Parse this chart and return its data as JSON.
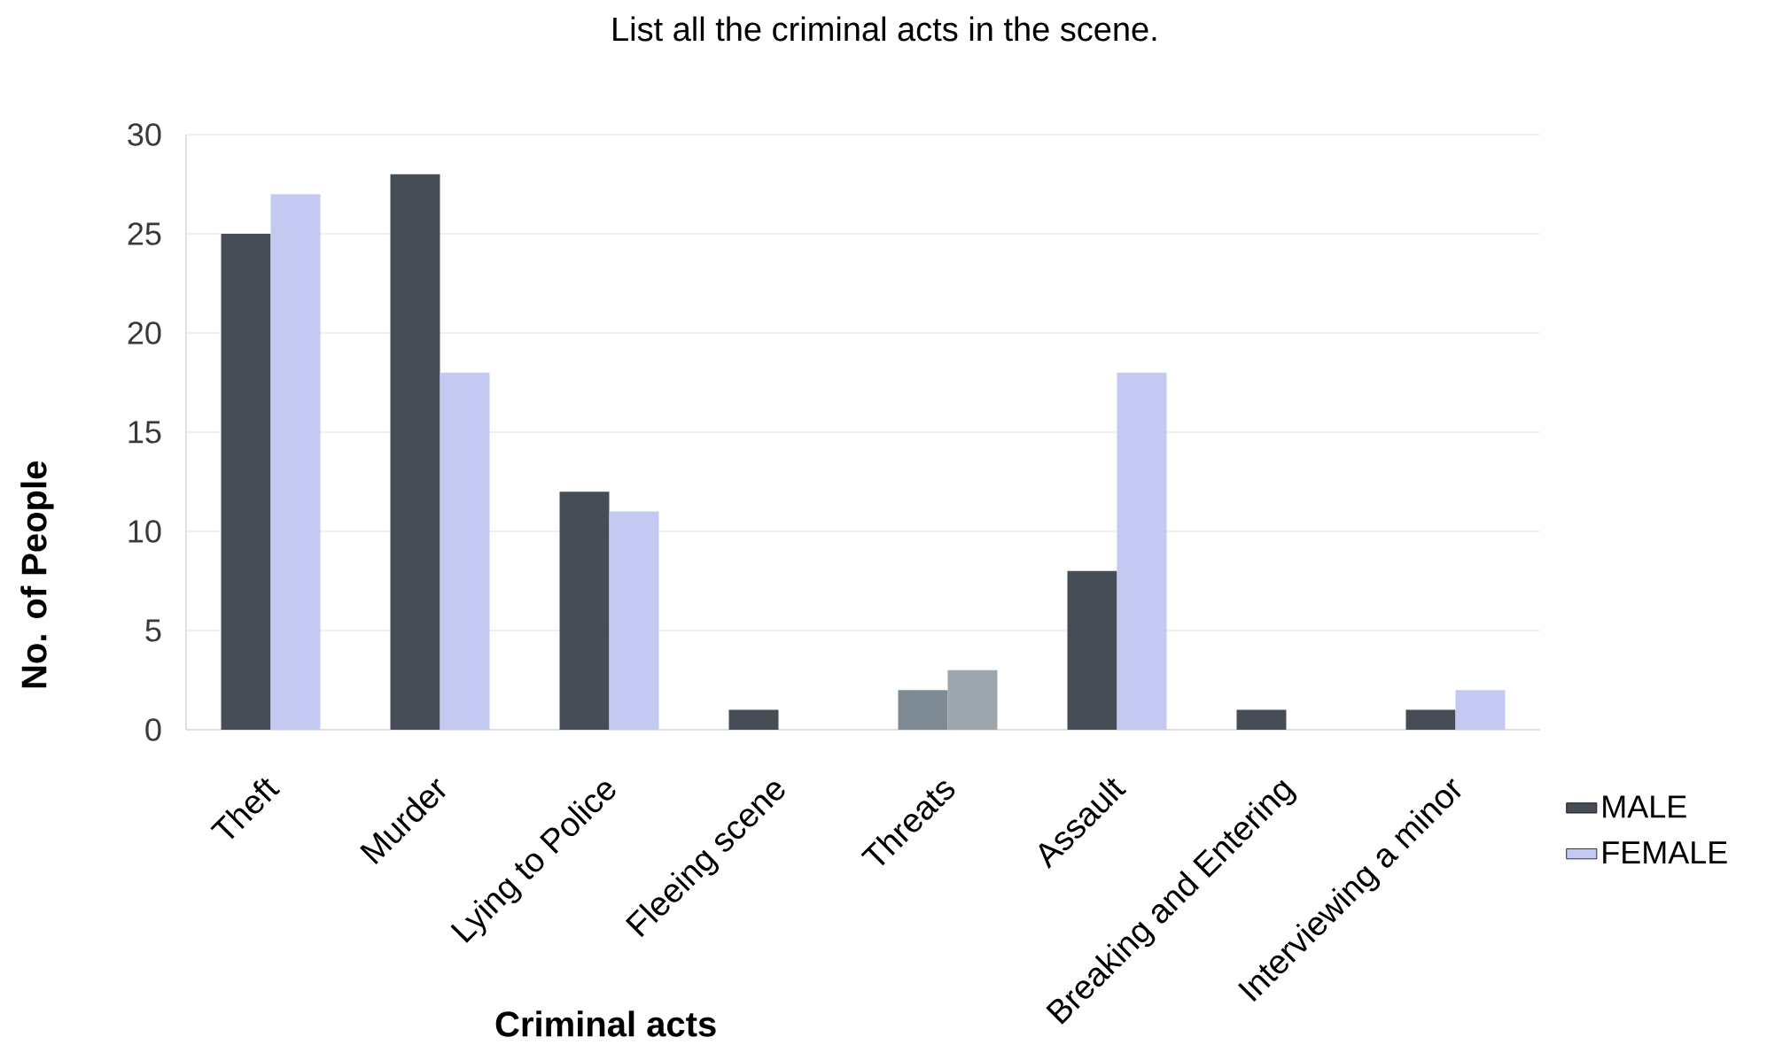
{
  "chart_data": {
    "type": "bar",
    "title": "List all the criminal acts in the scene.",
    "xlabel": "Criminal acts",
    "ylabel": "No. of People",
    "categories": [
      "Theft",
      "Murder",
      "Lying to Police",
      "Fleeing scene",
      "Threats",
      "Assault",
      "Breaking and Entering",
      "Interviewing a minor"
    ],
    "series": [
      {
        "name": "MALE",
        "color": "#474d57",
        "colors": [
          "#474d57",
          "#474d57",
          "#474d57",
          "#474d57",
          "#7d8a94",
          "#474d57",
          "#474d57",
          "#474d57"
        ],
        "values": [
          25,
          28,
          12,
          1,
          2,
          8,
          1,
          1
        ]
      },
      {
        "name": "FEMALE",
        "color": "#c3c9f1",
        "colors": [
          "#c3c9f1",
          "#c3c9f1",
          "#c3c9f1",
          "#c3c9f1",
          "#9da6ad",
          "#c3c9f1",
          "#c3c9f1",
          "#c3c9f1"
        ],
        "values": [
          27,
          18,
          11,
          null,
          3,
          18,
          null,
          2
        ]
      }
    ],
    "ylim": [
      0,
      30
    ],
    "yticks": [
      0,
      5,
      10,
      15,
      20,
      25,
      30
    ],
    "grid": "y",
    "legend": "right"
  }
}
